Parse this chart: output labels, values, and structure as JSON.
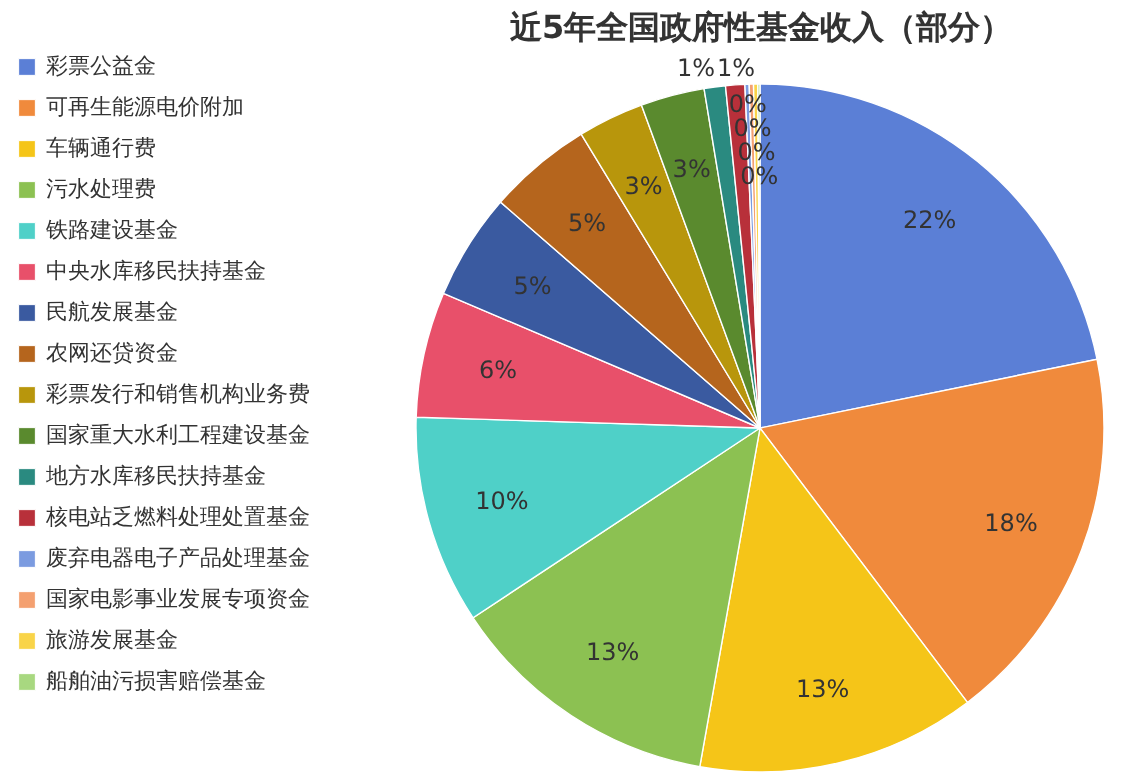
{
  "chart_data": {
    "type": "pie",
    "title": "近5年全国政府性基金收入（部分）",
    "categories": [
      "彩票公益金",
      "可再生能源电价附加",
      "车辆通行费",
      "污水处理费",
      "铁路建设基金",
      "中央水库移民扶持基金",
      "民航发展基金",
      "农网还贷资金",
      "彩票发行和销售机构业务费",
      "国家重大水利工程建设基金",
      "地方水库移民扶持基金",
      "核电站乏燃料处理处置基金",
      "废弃电器电子产品处理基金",
      "国家电影事业发展专项资金",
      "旅游发展基金",
      "船舶油污损害赔偿基金"
    ],
    "values": [
      21.8,
      17.9,
      13.1,
      12.9,
      9.8,
      5.9,
      5.0,
      4.9,
      3.1,
      3.0,
      1.0,
      0.9,
      0.2,
      0.2,
      0.2,
      0.1
    ],
    "value_labels": [
      "22%",
      "18%",
      "13%",
      "13%",
      "10%",
      "6%",
      "5%",
      "5%",
      "3%",
      "3%",
      "1%",
      "1%",
      "0%",
      "0%",
      "0%",
      "0%"
    ],
    "colors": [
      "#5b7fd6",
      "#f08a3c",
      "#f5c518",
      "#8cc152",
      "#4fd0c8",
      "#e8506a",
      "#3a5aa0",
      "#b5651d",
      "#b8960c",
      "#5a8a2e",
      "#2a8a80",
      "#b8303a",
      "#7b9be0",
      "#f4a070",
      "#f9d448",
      "#a8d880"
    ],
    "legend": "left"
  }
}
